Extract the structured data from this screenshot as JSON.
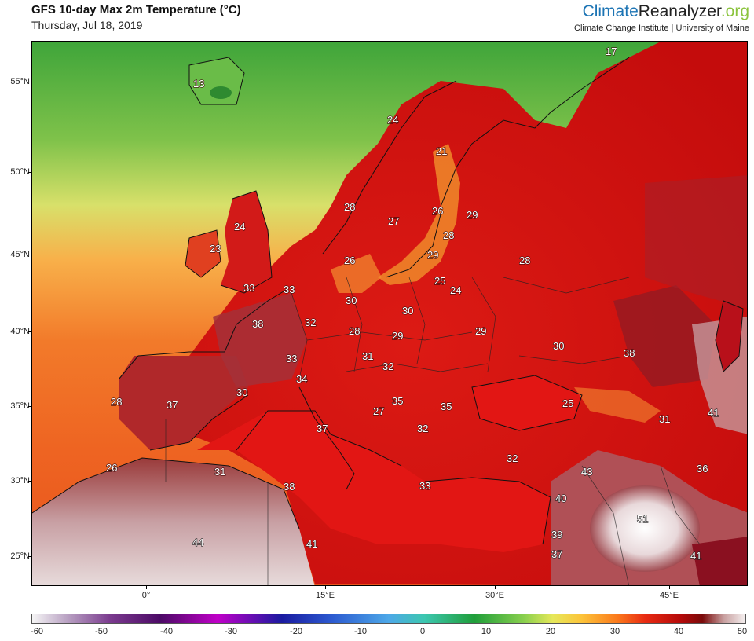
{
  "header": {
    "title": "GFS 10-day Max 2m Temperature (°C)",
    "date": "Thursday, Jul 18, 2019"
  },
  "brand": {
    "name_part1": "Climate",
    "name_part2": "Reanalyzer",
    "name_part3": ".org",
    "subtitle": "Climate Change Institute | University of Maine",
    "colors": {
      "part1": "#1c74b4",
      "part2": "#222222",
      "part3": "#8cc43f"
    }
  },
  "map": {
    "lat_labels": [
      "55°N",
      "50°N",
      "45°N",
      "40°N",
      "35°N",
      "30°N",
      "25°N"
    ],
    "lon_labels": [
      "0°",
      "15°E",
      "30°E",
      "45°E"
    ],
    "temperature_labels": [
      {
        "value": "17",
        "name": "temp-label-17"
      },
      {
        "value": "13",
        "name": "temp-label-13"
      },
      {
        "value": "24",
        "name": "temp-label-24-norway"
      },
      {
        "value": "21",
        "name": "temp-label-21"
      },
      {
        "value": "28",
        "name": "temp-label-28-norway"
      },
      {
        "value": "27",
        "name": "temp-label-27-sweden"
      },
      {
        "value": "26",
        "name": "temp-label-26-finland"
      },
      {
        "value": "29",
        "name": "temp-label-29-russia-north"
      },
      {
        "value": "24",
        "name": "temp-label-24-scotland"
      },
      {
        "value": "23",
        "name": "temp-label-23-ireland"
      },
      {
        "value": "26",
        "name": "temp-label-26-denmark"
      },
      {
        "value": "28",
        "name": "temp-label-28-baltic"
      },
      {
        "value": "29",
        "name": "temp-label-29-baltic"
      },
      {
        "value": "28",
        "name": "temp-label-28-russia"
      },
      {
        "value": "33",
        "name": "temp-label-33-england"
      },
      {
        "value": "33",
        "name": "temp-label-33-benelux"
      },
      {
        "value": "30",
        "name": "temp-label-30-germany"
      },
      {
        "value": "30",
        "name": "temp-label-30-poland"
      },
      {
        "value": "25",
        "name": "temp-label-25-belarus"
      },
      {
        "value": "24",
        "name": "temp-label-24-belarus"
      },
      {
        "value": "38",
        "name": "temp-label-38-france"
      },
      {
        "value": "32",
        "name": "temp-label-32-germany"
      },
      {
        "value": "28",
        "name": "temp-label-28-czech"
      },
      {
        "value": "29",
        "name": "temp-label-29-slovakia"
      },
      {
        "value": "29",
        "name": "temp-label-29-ukraine"
      },
      {
        "value": "30",
        "name": "temp-label-30-russia-south"
      },
      {
        "value": "38",
        "name": "temp-label-38-caspian"
      },
      {
        "value": "33",
        "name": "temp-label-33-switzerland"
      },
      {
        "value": "31",
        "name": "temp-label-31-austria"
      },
      {
        "value": "32",
        "name": "temp-label-32-hungary"
      },
      {
        "value": "34",
        "name": "temp-label-34-italy-north"
      },
      {
        "value": "30",
        "name": "temp-label-30-france-south"
      },
      {
        "value": "28",
        "name": "temp-label-28-portugal"
      },
      {
        "value": "37",
        "name": "temp-label-37-spain"
      },
      {
        "value": "27",
        "name": "temp-label-27-adriatic"
      },
      {
        "value": "35",
        "name": "temp-label-35-serbia"
      },
      {
        "value": "35",
        "name": "temp-label-35-romania"
      },
      {
        "value": "25",
        "name": "temp-label-25-caucasus"
      },
      {
        "value": "31",
        "name": "temp-label-31-caucasus"
      },
      {
        "value": "41",
        "name": "temp-label-41-kazakhstan"
      },
      {
        "value": "37",
        "name": "temp-label-37-italy"
      },
      {
        "value": "32",
        "name": "temp-label-32-greece"
      },
      {
        "value": "32",
        "name": "temp-label-32-turkey"
      },
      {
        "value": "26",
        "name": "temp-label-26-morocco"
      },
      {
        "value": "31",
        "name": "temp-label-31-algeria"
      },
      {
        "value": "43",
        "name": "temp-label-43-syria"
      },
      {
        "value": "36",
        "name": "temp-label-36-iran"
      },
      {
        "value": "38",
        "name": "temp-label-38-tunisia"
      },
      {
        "value": "33",
        "name": "temp-label-33-aegean"
      },
      {
        "value": "40",
        "name": "temp-label-40-levant"
      },
      {
        "value": "51",
        "name": "temp-label-51-iraq"
      },
      {
        "value": "44",
        "name": "temp-label-44-sahara"
      },
      {
        "value": "41",
        "name": "temp-label-41-libya"
      },
      {
        "value": "39",
        "name": "temp-label-39-jordan"
      },
      {
        "value": "37",
        "name": "temp-label-37-egypt"
      },
      {
        "value": "41",
        "name": "temp-label-41-gulf"
      }
    ]
  },
  "colorbar": {
    "labels": [
      "-60",
      "-50",
      "-40",
      "-30",
      "-20",
      "-10",
      "0",
      "10",
      "20",
      "30",
      "40",
      "50"
    ]
  }
}
